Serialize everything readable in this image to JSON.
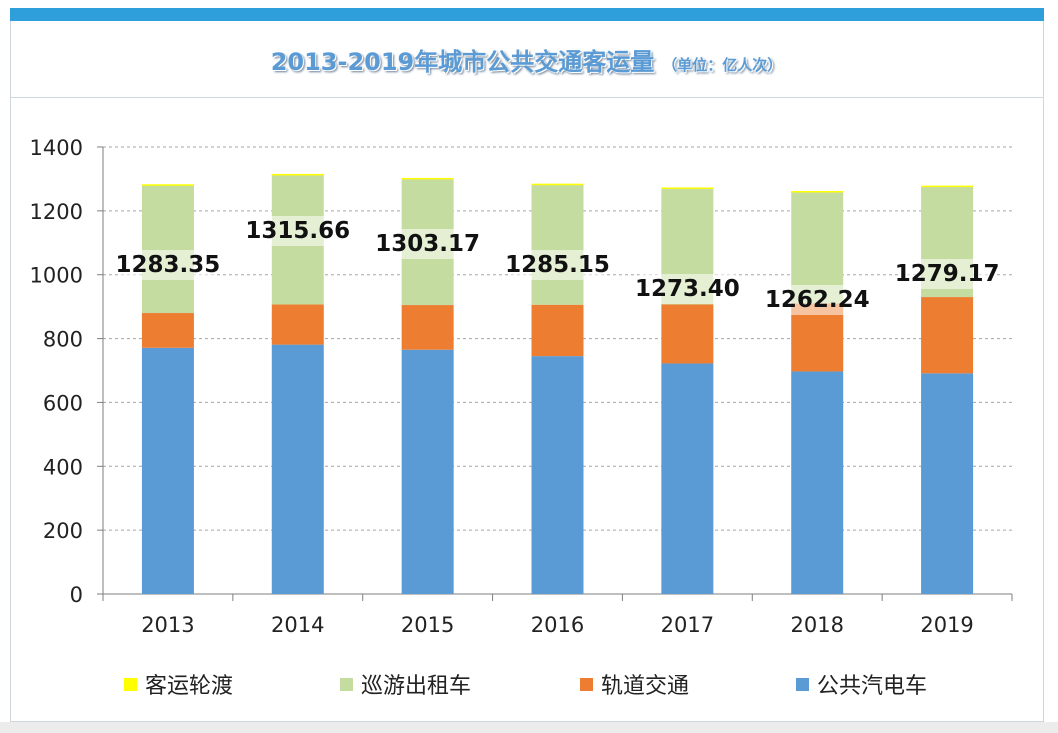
{
  "title": {
    "main": "2013-2019年城市公共交通客运量",
    "unit": "（单位：亿人次）"
  },
  "chart_data": {
    "type": "bar",
    "stacked": true,
    "title": "2013-2019年城市公共交通客运量（单位：亿人次）",
    "categories": [
      "2013",
      "2014",
      "2015",
      "2016",
      "2017",
      "2018",
      "2019"
    ],
    "ylim": [
      0,
      1400
    ],
    "yticks": [
      "0",
      "200",
      "400",
      "600",
      "800",
      "1000",
      "1200",
      "1400"
    ],
    "grid": true,
    "series": [
      {
        "name": "公共汽电车",
        "color": "#5b9bd5",
        "values": [
          771,
          781,
          765,
          745,
          722,
          697,
          691
        ]
      },
      {
        "name": "轨道交通",
        "color": "#ed7d31",
        "values": [
          109,
          126,
          140,
          161,
          185,
          213,
          239
        ]
      },
      {
        "name": "巡游出租车",
        "color": "#c5dca0",
        "values": [
          401,
          406,
          397,
          377,
          364,
          352,
          347
        ]
      },
      {
        "name": "客运轮渡",
        "color": "#ffff00",
        "values": [
          2.35,
          2.66,
          1.17,
          2.15,
          2.4,
          0.24,
          2.17
        ]
      }
    ],
    "totals": [
      "1283.35",
      "1315.66",
      "1303.17",
      "1285.15",
      "1273.40",
      "1262.24",
      "1279.17"
    ],
    "legend": [
      "客运轮渡",
      "巡游出租车",
      "轨道交通",
      "公共汽电车"
    ],
    "legend_position": "bottom"
  },
  "legend_colors": {
    "客运轮渡": "#ffff00",
    "巡游出租车": "#c5dca0",
    "轨道交通": "#ed7d31",
    "公共汽电车": "#5b9bd5"
  }
}
